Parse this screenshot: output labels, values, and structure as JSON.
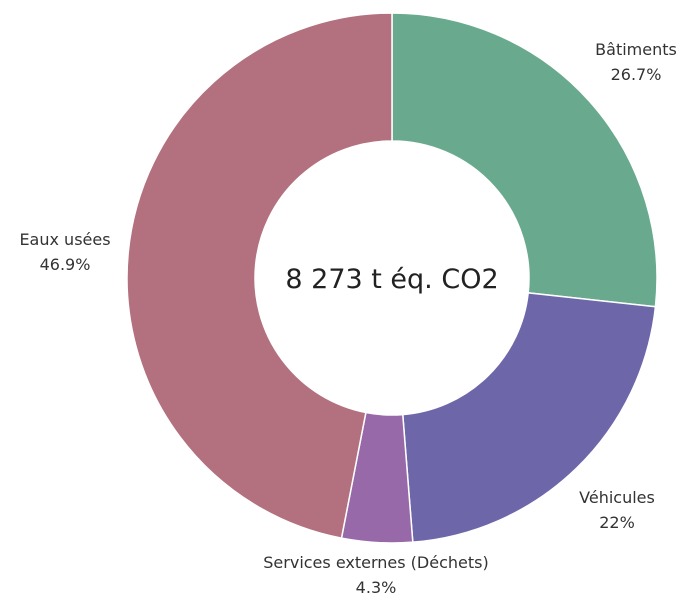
{
  "chart_data": {
    "type": "pie",
    "variant": "donut",
    "center_text": "8 273 t éq. CO2",
    "legend": "none",
    "slices": [
      {
        "name": "Bâtiments",
        "percent_label": "26.7%",
        "value": 26.7,
        "color": "#69aa8f"
      },
      {
        "name": "Véhicules",
        "percent_label": "22%",
        "value": 22.0,
        "color": "#6d66a9"
      },
      {
        "name": "Services externes (Déchets)",
        "percent_label": "4.3%",
        "value": 4.3,
        "color": "#9869a9"
      },
      {
        "name": "Eaux usées",
        "percent_label": "46.9%",
        "value": 46.9,
        "color": "#b3707f"
      }
    ]
  }
}
